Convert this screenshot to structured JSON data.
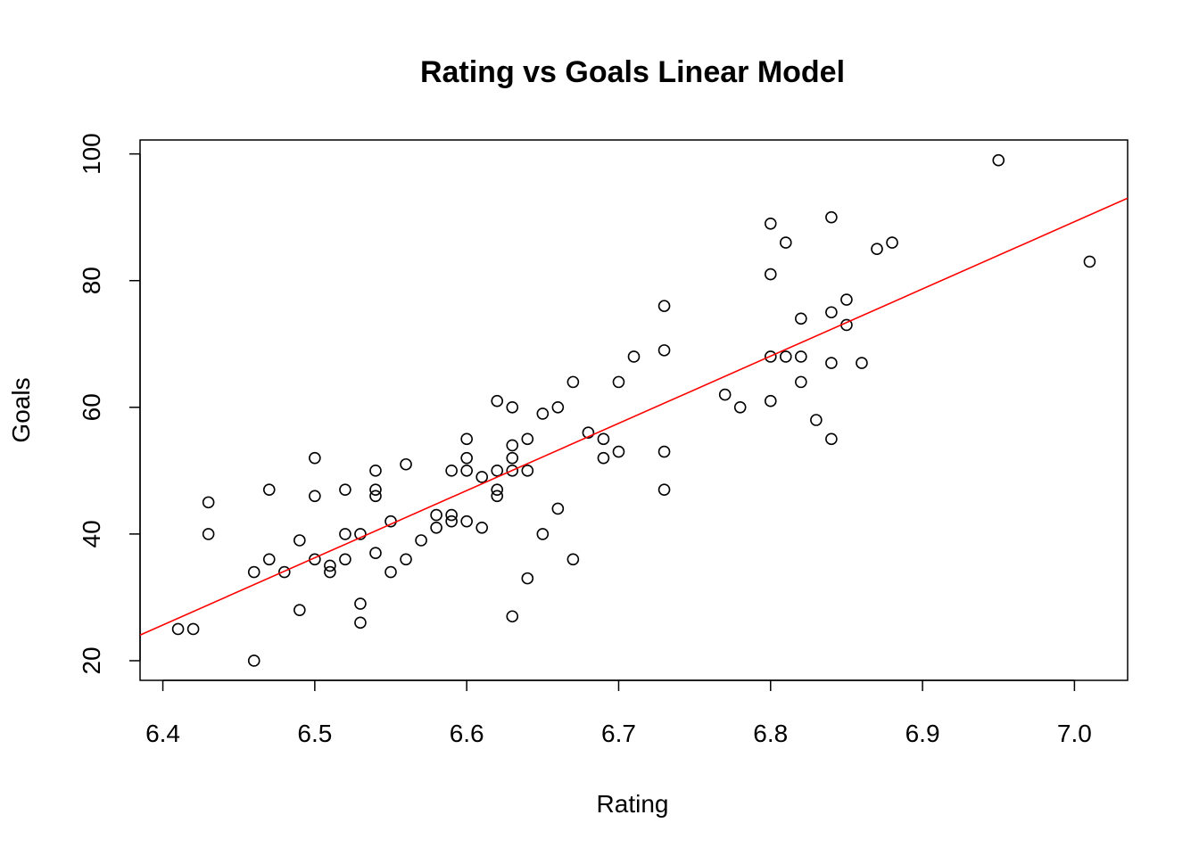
{
  "chart_data": {
    "type": "scatter",
    "title": "Rating vs Goals Linear Model",
    "xlabel": "Rating",
    "ylabel": "Goals",
    "xlim": [
      6.385,
      7.035
    ],
    "ylim": [
      16.9,
      102.2
    ],
    "xticks": [
      6.4,
      6.5,
      6.6,
      6.7,
      6.8,
      6.9,
      7.0
    ],
    "xtick_labels": [
      "6.4",
      "6.5",
      "6.6",
      "6.7",
      "6.8",
      "6.9",
      "7.0"
    ],
    "yticks": [
      20,
      40,
      60,
      80,
      100
    ],
    "ytick_labels": [
      "20",
      "40",
      "60",
      "80",
      "100"
    ],
    "grid": false,
    "points": [
      [
        6.41,
        25
      ],
      [
        6.42,
        25
      ],
      [
        6.43,
        45
      ],
      [
        6.43,
        40
      ],
      [
        6.46,
        34
      ],
      [
        6.46,
        20
      ],
      [
        6.47,
        47
      ],
      [
        6.47,
        36
      ],
      [
        6.48,
        34
      ],
      [
        6.49,
        39
      ],
      [
        6.49,
        28
      ],
      [
        6.5,
        52
      ],
      [
        6.5,
        46
      ],
      [
        6.5,
        36
      ],
      [
        6.51,
        35
      ],
      [
        6.51,
        34
      ],
      [
        6.52,
        47
      ],
      [
        6.52,
        40
      ],
      [
        6.52,
        36
      ],
      [
        6.53,
        40
      ],
      [
        6.53,
        29
      ],
      [
        6.53,
        26
      ],
      [
        6.54,
        50
      ],
      [
        6.54,
        47
      ],
      [
        6.54,
        46
      ],
      [
        6.54,
        37
      ],
      [
        6.55,
        42
      ],
      [
        6.55,
        34
      ],
      [
        6.56,
        51
      ],
      [
        6.56,
        36
      ],
      [
        6.57,
        39
      ],
      [
        6.58,
        43
      ],
      [
        6.58,
        41
      ],
      [
        6.59,
        50
      ],
      [
        6.59,
        43
      ],
      [
        6.59,
        42
      ],
      [
        6.6,
        55
      ],
      [
        6.6,
        52
      ],
      [
        6.6,
        50
      ],
      [
        6.6,
        42
      ],
      [
        6.61,
        49
      ],
      [
        6.61,
        41
      ],
      [
        6.62,
        61
      ],
      [
        6.62,
        50
      ],
      [
        6.62,
        47
      ],
      [
        6.62,
        46
      ],
      [
        6.63,
        60
      ],
      [
        6.63,
        54
      ],
      [
        6.63,
        52
      ],
      [
        6.63,
        50
      ],
      [
        6.63,
        27
      ],
      [
        6.64,
        55
      ],
      [
        6.64,
        50
      ],
      [
        6.64,
        33
      ],
      [
        6.65,
        59
      ],
      [
        6.65,
        40
      ],
      [
        6.66,
        60
      ],
      [
        6.66,
        44
      ],
      [
        6.67,
        64
      ],
      [
        6.67,
        36
      ],
      [
        6.68,
        56
      ],
      [
        6.69,
        55
      ],
      [
        6.69,
        52
      ],
      [
        6.7,
        64
      ],
      [
        6.7,
        53
      ],
      [
        6.71,
        68
      ],
      [
        6.73,
        76
      ],
      [
        6.73,
        69
      ],
      [
        6.73,
        53
      ],
      [
        6.73,
        47
      ],
      [
        6.77,
        62
      ],
      [
        6.78,
        60
      ],
      [
        6.8,
        89
      ],
      [
        6.8,
        81
      ],
      [
        6.8,
        68
      ],
      [
        6.8,
        61
      ],
      [
        6.81,
        86
      ],
      [
        6.81,
        68
      ],
      [
        6.82,
        74
      ],
      [
        6.82,
        68
      ],
      [
        6.82,
        64
      ],
      [
        6.83,
        58
      ],
      [
        6.84,
        90
      ],
      [
        6.84,
        75
      ],
      [
        6.84,
        67
      ],
      [
        6.84,
        55
      ],
      [
        6.85,
        77
      ],
      [
        6.85,
        73
      ],
      [
        6.86,
        67
      ],
      [
        6.87,
        85
      ],
      [
        6.88,
        86
      ],
      [
        6.95,
        99
      ],
      [
        7.01,
        83
      ]
    ],
    "fit_line": {
      "slope": 106.1,
      "intercept": -653.4,
      "color": "#ff0000"
    },
    "point_color": "#000000"
  }
}
